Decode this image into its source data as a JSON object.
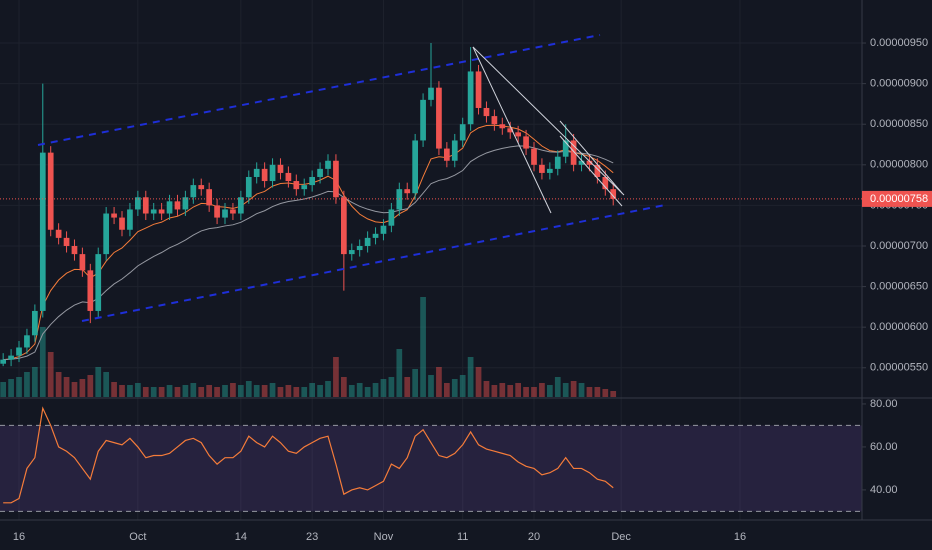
{
  "chart_data": {
    "type": "candlestick",
    "x": [
      13,
      14,
      15,
      16,
      17,
      18,
      19,
      20,
      21,
      22,
      23,
      24,
      25,
      26,
      27,
      28,
      29,
      30,
      31,
      32,
      33,
      34,
      35,
      36,
      37,
      38,
      39,
      40,
      41,
      42,
      43,
      44,
      45,
      46,
      47,
      48,
      49,
      50,
      51,
      52,
      53,
      54,
      55,
      56,
      57,
      58,
      59,
      60,
      61,
      62,
      63,
      64,
      65,
      66,
      67,
      68,
      69,
      70,
      71,
      72,
      73,
      74,
      75,
      76,
      77,
      78,
      79,
      80,
      81,
      82,
      83,
      84,
      85,
      86,
      87,
      88,
      89,
      90
    ],
    "open": [
      5.55e-06,
      5.6e-06,
      5.65e-06,
      5.75e-06,
      5.9e-06,
      6.2e-06,
      8.15e-06,
      7.2e-06,
      7.1e-06,
      7e-06,
      6.9e-06,
      6.7e-06,
      6.2e-06,
      6.9e-06,
      7.4e-06,
      7.35e-06,
      7.2e-06,
      7.45e-06,
      7.6e-06,
      7.4e-06,
      7.45e-06,
      7.4e-06,
      7.55e-06,
      7.45e-06,
      7.6e-06,
      7.75e-06,
      7.7e-06,
      7.5e-06,
      7.35e-06,
      7.45e-06,
      7.4e-06,
      7.6e-06,
      7.85e-06,
      7.95e-06,
      7.8e-06,
      8e-06,
      7.9e-06,
      7.8e-06,
      7.7e-06,
      7.75e-06,
      7.85e-06,
      7.95e-06,
      8.05e-06,
      7.6e-06,
      6.9e-06,
      6.95e-06,
      7e-06,
      7.1e-06,
      7.15e-06,
      7.25e-06,
      7.45e-06,
      7.7e-06,
      7.65e-06,
      8.3e-06,
      8.8e-06,
      8.95e-06,
      8.2e-06,
      8.05e-06,
      8.3e-06,
      8.5e-06,
      9.15e-06,
      8.7e-06,
      8.6e-06,
      8.5e-06,
      8.45e-06,
      8.4e-06,
      8.35e-06,
      8.2e-06,
      8e-06,
      7.9e-06,
      7.95e-06,
      8.1e-06,
      8.3e-06,
      8e-06,
      8.05e-06,
      8e-06,
      7.85e-06,
      7.7e-06
    ],
    "high": [
      5.68e-06,
      5.73e-06,
      5.83e-06,
      5.98e-06,
      6.28e-06,
      9e-06,
      8.23e-06,
      7.28e-06,
      7.18e-06,
      7.08e-06,
      6.98e-06,
      6.78e-06,
      6.98e-06,
      7.48e-06,
      7.48e-06,
      7.43e-06,
      7.53e-06,
      7.68e-06,
      7.68e-06,
      7.53e-06,
      7.53e-06,
      7.63e-06,
      7.63e-06,
      7.68e-06,
      7.83e-06,
      7.83e-06,
      7.78e-06,
      7.58e-06,
      7.53e-06,
      7.53e-06,
      7.68e-06,
      7.93e-06,
      8.03e-06,
      8.03e-06,
      8.08e-06,
      8.08e-06,
      7.98e-06,
      7.88e-06,
      7.83e-06,
      7.93e-06,
      8.03e-06,
      8.13e-06,
      8.13e-06,
      7.68e-06,
      7.03e-06,
      7.08e-06,
      7.18e-06,
      7.23e-06,
      7.33e-06,
      7.53e-06,
      7.78e-06,
      7.78e-06,
      8.38e-06,
      8.88e-06,
      9.5e-06,
      9.03e-06,
      8.28e-06,
      8.38e-06,
      8.58e-06,
      9.45e-06,
      9.23e-06,
      8.78e-06,
      8.68e-06,
      8.58e-06,
      8.53e-06,
      8.48e-06,
      8.43e-06,
      8.28e-06,
      8.08e-06,
      8.03e-06,
      8.18e-06,
      8.5e-06,
      8.38e-06,
      8.13e-06,
      8.13e-06,
      8.08e-06,
      7.93e-06,
      7.78e-06
    ],
    "low": [
      5.52e-06,
      5.52e-06,
      5.57e-06,
      5.67e-06,
      5.82e-06,
      6.12e-06,
      7.12e-06,
      7.02e-06,
      6.92e-06,
      6.82e-06,
      6.62e-06,
      6.05e-06,
      6.12e-06,
      6.82e-06,
      7.27e-06,
      7.12e-06,
      7.12e-06,
      7.37e-06,
      7.32e-06,
      7.32e-06,
      7.32e-06,
      7.32e-06,
      7.37e-06,
      7.37e-06,
      7.52e-06,
      7.62e-06,
      7.42e-06,
      7.27e-06,
      7.27e-06,
      7.32e-06,
      7.32e-06,
      7.52e-06,
      7.77e-06,
      7.72e-06,
      7.72e-06,
      7.82e-06,
      7.72e-06,
      7.62e-06,
      7.62e-06,
      7.67e-06,
      7.77e-06,
      7.87e-06,
      7.52e-06,
      6.45e-06,
      6.82e-06,
      6.87e-06,
      6.92e-06,
      7.02e-06,
      7.07e-06,
      7.17e-06,
      7.37e-06,
      7.57e-06,
      7.57e-06,
      8.22e-06,
      8.72e-06,
      8.12e-06,
      7.97e-06,
      7.97e-06,
      8.22e-06,
      8.42e-06,
      8.62e-06,
      8.52e-06,
      8.42e-06,
      8.37e-06,
      8.32e-06,
      8.27e-06,
      8.12e-06,
      7.92e-06,
      7.82e-06,
      7.82e-06,
      7.87e-06,
      8.02e-06,
      7.92e-06,
      7.92e-06,
      7.92e-06,
      7.77e-06,
      7.62e-06,
      7.5e-06
    ],
    "close": [
      5.6e-06,
      5.65e-06,
      5.75e-06,
      5.9e-06,
      6.2e-06,
      8.15e-06,
      7.2e-06,
      7.1e-06,
      7e-06,
      6.9e-06,
      6.7e-06,
      6.2e-06,
      6.9e-06,
      7.4e-06,
      7.35e-06,
      7.2e-06,
      7.45e-06,
      7.6e-06,
      7.4e-06,
      7.45e-06,
      7.4e-06,
      7.55e-06,
      7.45e-06,
      7.6e-06,
      7.75e-06,
      7.7e-06,
      7.5e-06,
      7.35e-06,
      7.45e-06,
      7.4e-06,
      7.6e-06,
      7.85e-06,
      7.95e-06,
      7.8e-06,
      8e-06,
      7.9e-06,
      7.8e-06,
      7.7e-06,
      7.75e-06,
      7.85e-06,
      7.95e-06,
      8.05e-06,
      7.6e-06,
      6.9e-06,
      6.95e-06,
      7e-06,
      7.1e-06,
      7.15e-06,
      7.25e-06,
      7.45e-06,
      7.7e-06,
      7.65e-06,
      8.3e-06,
      8.8e-06,
      8.95e-06,
      8.2e-06,
      8.05e-06,
      8.3e-06,
      8.5e-06,
      9.15e-06,
      8.7e-06,
      8.6e-06,
      8.5e-06,
      8.45e-06,
      8.4e-06,
      8.35e-06,
      8.2e-06,
      8e-06,
      7.9e-06,
      7.95e-06,
      8.1e-06,
      8.3e-06,
      8e-06,
      8.05e-06,
      8e-06,
      7.85e-06,
      7.7e-06,
      7.58e-06
    ],
    "volume": [
      15,
      18,
      20,
      25,
      30,
      70,
      45,
      25,
      20,
      15,
      18,
      22,
      30,
      25,
      15,
      12,
      12,
      14,
      10,
      10,
      10,
      12,
      10,
      12,
      14,
      10,
      12,
      10,
      12,
      14,
      12,
      16,
      12,
      12,
      14,
      10,
      12,
      10,
      10,
      14,
      12,
      16,
      40,
      20,
      12,
      14,
      10,
      14,
      18,
      20,
      48,
      20,
      28,
      100,
      22,
      30,
      14,
      18,
      22,
      40,
      30,
      16,
      12,
      14,
      12,
      14,
      10,
      10,
      14,
      12,
      20,
      14,
      16,
      14,
      10,
      10,
      8,
      6
    ],
    "up_color": "#26a69a",
    "down_color": "#ef5350",
    "xlim": [
      12.6,
      121.4
    ],
    "xticks": [
      {
        "value": 15,
        "label": "16"
      },
      {
        "value": 30,
        "label": "Oct"
      },
      {
        "value": 43,
        "label": "14"
      },
      {
        "value": 52,
        "label": "23"
      },
      {
        "value": 61,
        "label": "Nov"
      },
      {
        "value": 71,
        "label": "11"
      },
      {
        "value": 80,
        "label": "20"
      },
      {
        "value": 91,
        "label": "Dec"
      },
      {
        "value": 106,
        "label": "16"
      }
    ],
    "ylim": [
      5.14e-06,
      1.003e-05
    ],
    "yticks": [
      {
        "value": 9.5e-06,
        "label": "0.00000950"
      },
      {
        "value": 9e-06,
        "label": "0.00000900"
      },
      {
        "value": 8.5e-06,
        "label": "0.00000850"
      },
      {
        "value": 8e-06,
        "label": "0.00000800"
      },
      {
        "value": 7.5e-06,
        "label": "0.00000750"
      },
      {
        "value": 7e-06,
        "label": "0.00000700"
      },
      {
        "value": 6.5e-06,
        "label": "0.00000650"
      },
      {
        "value": 6e-06,
        "label": "0.00000600"
      },
      {
        "value": 5.5e-06,
        "label": "0.00000550"
      }
    ],
    "last_price": {
      "value": 7.58e-06,
      "label": "0.00000758"
    },
    "grid": true,
    "rsi": {
      "values": [
        34,
        34,
        36,
        50,
        55,
        78,
        70,
        60,
        58,
        55,
        50,
        45,
        58,
        63,
        62,
        61,
        64,
        60,
        55,
        56,
        56,
        57,
        60,
        63,
        64,
        62,
        56,
        52,
        55,
        55,
        58,
        65,
        62,
        60,
        65,
        62,
        58,
        57,
        60,
        62,
        64,
        65,
        52,
        38,
        40,
        41,
        40,
        42,
        44,
        52,
        50,
        55,
        65,
        68,
        62,
        56,
        55,
        57,
        61,
        67,
        61,
        59,
        58,
        57,
        56,
        53,
        51,
        50,
        47,
        48,
        50,
        55,
        50,
        50,
        48,
        45,
        44,
        41
      ],
      "color": "#f57c3a",
      "ylim": [
        26,
        82.3
      ],
      "yticks": [
        {
          "value": 80,
          "label": "80.00"
        },
        {
          "value": 60,
          "label": "60.00"
        },
        {
          "value": 40,
          "label": "40.00"
        }
      ],
      "levels": [
        70,
        30
      ]
    }
  }
}
